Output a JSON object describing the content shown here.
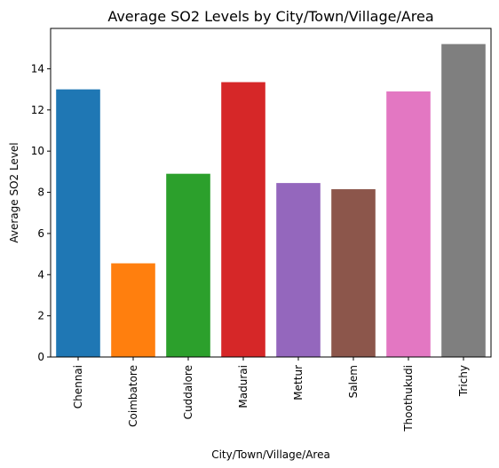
{
  "chart_data": {
    "type": "bar",
    "title": "Average SO2 Levels by City/Town/Village/Area",
    "xlabel": "City/Town/Village/Area",
    "ylabel": "Average SO2 Level",
    "categories": [
      "Chennai",
      "Coimbatore",
      "Cuddalore",
      "Madurai",
      "Mettur",
      "Salem",
      "Thoothukudi",
      "Trichy"
    ],
    "values": [
      13.0,
      4.55,
      8.9,
      13.35,
      8.45,
      8.15,
      12.9,
      15.2
    ],
    "colors": [
      "#1f77b4",
      "#ff7f0e",
      "#2ca02c",
      "#d62728",
      "#9467bd",
      "#8c564b",
      "#e377c2",
      "#7f7f7f"
    ],
    "ylim": [
      0,
      15.96
    ],
    "yticks": [
      0,
      2,
      4,
      6,
      8,
      10,
      12,
      14
    ],
    "grid": false,
    "legend": "none"
  }
}
